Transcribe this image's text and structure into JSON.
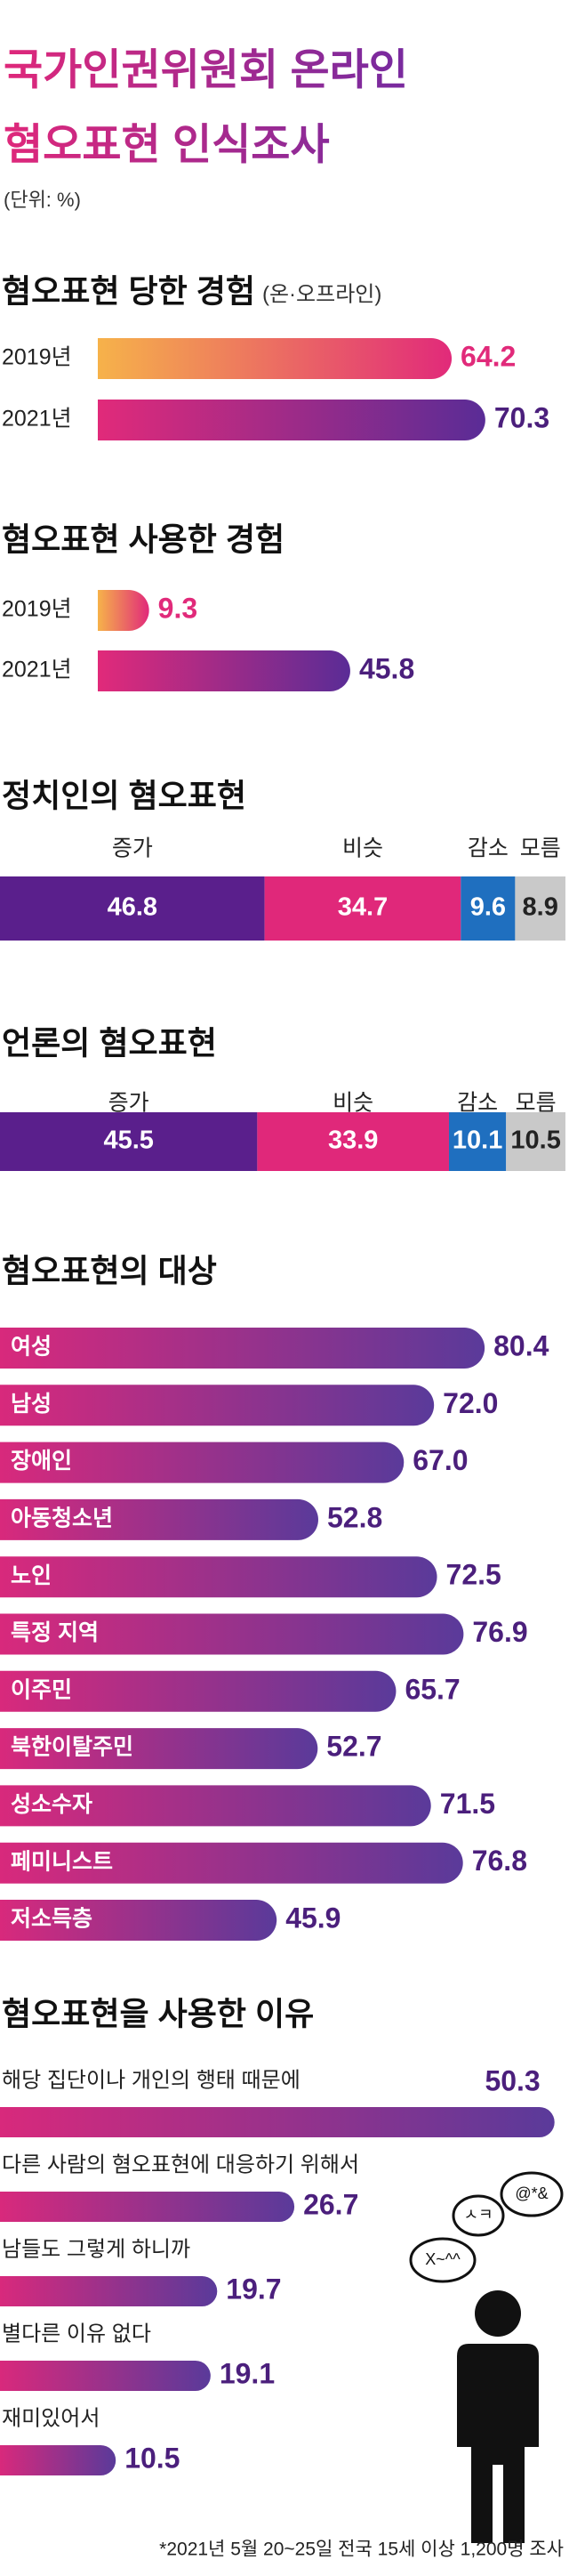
{
  "header": {
    "title": [
      "국가인권위원회 온라인",
      "혐오표현 인식조사"
    ],
    "unit": "(단위: %)"
  },
  "chart_data": [
    {
      "type": "bar",
      "title": "혐오표현 당한 경험",
      "subtitle": "(온·오프라인)",
      "categories": [
        "2019년",
        "2021년"
      ],
      "values": [
        64.2,
        70.3
      ],
      "bar_colors": [
        [
          "#f6b24a",
          "#e12a7a"
        ],
        [
          "#e12a7a",
          "#5a2c96"
        ]
      ],
      "value_colors": [
        "#e12a7a",
        "#4b1f7c"
      ],
      "label_position": "left"
    },
    {
      "type": "bar",
      "title": "혐오표현 사용한 경험",
      "categories": [
        "2019년",
        "2021년"
      ],
      "values": [
        9.3,
        45.8
      ],
      "bar_colors": [
        [
          "#f6b24a",
          "#e12a7a"
        ],
        [
          "#e12a7a",
          "#5a2c96"
        ]
      ],
      "value_colors": [
        "#e12a7a",
        "#4b1f7c"
      ],
      "label_position": "left"
    },
    {
      "type": "stacked_bar",
      "title": "정치인의 혐오표현",
      "series": [
        {
          "name": "증가",
          "color": "#5a1f8c",
          "label_color": "#ffffff",
          "values": [
            46.8
          ]
        },
        {
          "name": "비슷",
          "color": "#e0287a",
          "label_color": "#ffffff",
          "values": [
            34.7
          ]
        },
        {
          "name": "감소",
          "color": "#1f6fbf",
          "label_color": "#ffffff",
          "values": [
            9.6
          ]
        },
        {
          "name": "모름",
          "color": "#c9c9c9",
          "label_color": "#222222",
          "values": [
            8.9
          ]
        }
      ]
    },
    {
      "type": "stacked_bar",
      "title": "언론의 혐오표현",
      "series": [
        {
          "name": "증가",
          "color": "#5a1f8c",
          "label_color": "#ffffff",
          "values": [
            45.5
          ]
        },
        {
          "name": "비슷",
          "color": "#e0287a",
          "label_color": "#ffffff",
          "values": [
            33.9
          ]
        },
        {
          "name": "감소",
          "color": "#1f6fbf",
          "label_color": "#ffffff",
          "values": [
            10.1
          ]
        },
        {
          "name": "모름",
          "color": "#c9c9c9",
          "label_color": "#222222",
          "values": [
            10.5
          ]
        }
      ]
    },
    {
      "type": "bar",
      "title": "혐오표현의 대상",
      "categories": [
        "여성",
        "남성",
        "장애인",
        "아동청소년",
        "노인",
        "특정 지역",
        "이주민",
        "북한이탈주민",
        "성소수자",
        "페미니스트",
        "저소득층"
      ],
      "values": [
        80.4,
        72.0,
        67.0,
        52.8,
        72.5,
        76.9,
        65.7,
        52.7,
        71.5,
        76.8,
        45.9
      ],
      "value_labels": [
        "80.4",
        "72.0",
        "67.0",
        "52.8",
        "72.5",
        "76.9",
        "65.7",
        "52.7",
        "71.5",
        "76.8",
        "45.9"
      ],
      "gradient": [
        "#d8297c",
        "#5a3a9a"
      ],
      "value_color": "#4b1f7c",
      "label_position": "inside"
    },
    {
      "type": "bar",
      "title": "혐오표현을 사용한 이유",
      "categories": [
        "해당 집단이나 개인의 행태 때문에",
        "다른 사람의 혐오표현에 대응하기 위해서",
        "남들도 그렇게 하니까",
        "별다른 이유 없다",
        "재미있어서"
      ],
      "values": [
        50.3,
        26.7,
        19.7,
        19.1,
        10.5
      ],
      "gradient": [
        "#d8297c",
        "#5a3a9a"
      ],
      "value_color": "#4b1f7c",
      "label_position": "above"
    }
  ],
  "decoration": {
    "bubbles": [
      "ㅅㅋ",
      "@*&",
      "X~^^"
    ]
  },
  "footnote": "*2021년 5월 20~25일 전국 15세 이상 1,200명 조사"
}
